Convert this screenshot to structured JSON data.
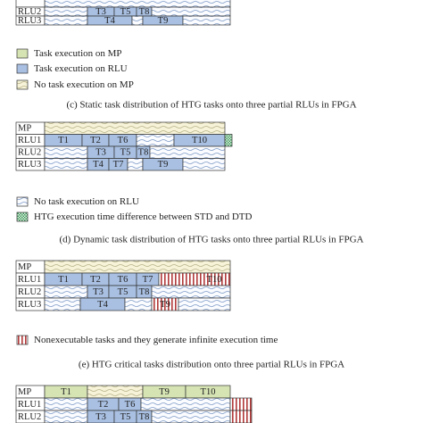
{
  "panel_c": {
    "rows": [
      {
        "name": "RLU2",
        "tasks": [
          "T3",
          "T5",
          "T8"
        ]
      },
      {
        "name": "RLU3",
        "tasks": [
          "T4",
          "T9"
        ]
      }
    ]
  },
  "legend_c": [
    "Task execution on MP",
    "Task execution on RLU",
    "No task execution on MP"
  ],
  "caption_c": "(c) Static task distribution of HTG tasks onto three partial RLUs in FPGA",
  "panel_d": {
    "rows": [
      {
        "name": "MP",
        "tasks": []
      },
      {
        "name": "RLU1",
        "tasks": [
          "T1",
          "T2",
          "T6",
          "T10"
        ]
      },
      {
        "name": "RLU2",
        "tasks": [
          "T3",
          "T5",
          "T8"
        ]
      },
      {
        "name": "RLU3",
        "tasks": [
          "T4",
          "T7",
          "T9"
        ]
      }
    ]
  },
  "legend_d": [
    "No task execution on RLU",
    "HTG execution time difference between STD and DTD"
  ],
  "caption_d": "(d) Dynamic task distribution of HTG tasks onto three partial RLUs in FPGA",
  "panel_e": {
    "rows": [
      {
        "name": "MP",
        "tasks": []
      },
      {
        "name": "RLU1",
        "tasks": [
          "T1",
          "T2",
          "T6",
          "T7",
          "T10"
        ]
      },
      {
        "name": "RLU2",
        "tasks": [
          "T3",
          "T5",
          "T8"
        ]
      },
      {
        "name": "RLU3",
        "tasks": [
          "T4",
          "T9"
        ]
      }
    ]
  },
  "legend_e": [
    "Nonexecutable tasks and they generate infinite execution time"
  ],
  "caption_e": "(e) HTG critical tasks distribution onto three partial RLUs in FPGA",
  "panel_f": {
    "rows": [
      {
        "name": "MP",
        "tasks": [
          "T1",
          "T9",
          "T10"
        ]
      },
      {
        "name": "RLU1",
        "tasks": [
          "T2",
          "T6"
        ]
      },
      {
        "name": "RLU2",
        "tasks": [
          "T3",
          "T5",
          "T8"
        ]
      }
    ]
  }
}
